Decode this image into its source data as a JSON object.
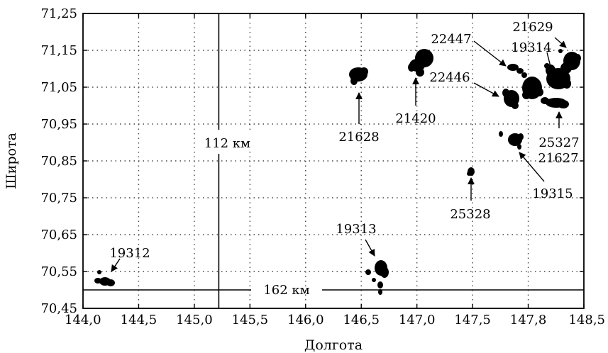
{
  "chart_data": {
    "type": "scatter",
    "xlabel": "Долгота",
    "ylabel": "Широта",
    "x_ticks": [
      "144,0",
      "144,5",
      "145,0",
      "145,5",
      "146,0",
      "146,5",
      "147,0",
      "147,5",
      "147,8",
      "148,5"
    ],
    "y_ticks": [
      "71,25",
      "71,15",
      "71,05",
      "70,95",
      "70,85",
      "70,75",
      "70,65",
      "70,55",
      "70,45"
    ],
    "grid": true,
    "scale_markers": [
      {
        "label": "112 км",
        "orientation": "vertical",
        "x": 145.22
      },
      {
        "label": "162 км",
        "orientation": "horizontal",
        "y": 70.5
      }
    ],
    "points": [
      {
        "label": "19312",
        "x": 144.2,
        "y": 70.52
      },
      {
        "label": "19313",
        "x": 146.65,
        "y": 70.54
      },
      {
        "label": "21628",
        "x": 146.5,
        "y": 71.08
      },
      {
        "label": "21420",
        "x": 147.0,
        "y": 71.11
      },
      {
        "label": "25328",
        "x": 147.5,
        "y": 70.82
      },
      {
        "label": "19315",
        "x": 147.9,
        "y": 70.91
      },
      {
        "label": "22447",
        "x": 147.85,
        "y": 71.08
      },
      {
        "label": "22446",
        "x": 147.82,
        "y": 71.03
      },
      {
        "label": "21627",
        "x": 148.25,
        "y": 71.06
      },
      {
        "label": "19314",
        "x": 148.35,
        "y": 71.12
      },
      {
        "label": "21629",
        "x": 148.3,
        "y": 71.01
      },
      {
        "label": "25327",
        "x": 148.03,
        "y": 71.05
      }
    ]
  }
}
